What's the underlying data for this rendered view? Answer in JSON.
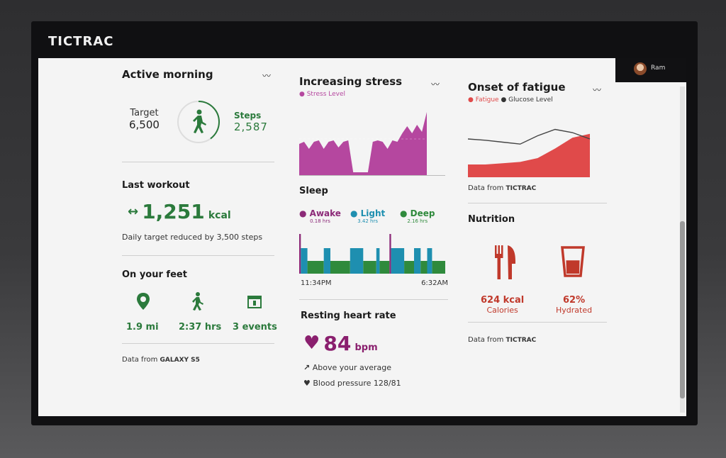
{
  "app": {
    "brand": "TICTRAC",
    "user_name": "Ram"
  },
  "active_morning": {
    "title": "Active morning",
    "target_label": "Target",
    "target_value": "6,500",
    "steps_label": "Steps",
    "steps_value": "2,587",
    "progress_fraction": 0.4
  },
  "last_workout": {
    "title": "Last workout",
    "value": "1,251",
    "unit": "kcal",
    "note": "Daily target reduced by 3,500 steps"
  },
  "on_your_feet": {
    "title": "On your feet",
    "items": [
      {
        "icon": "map-pin-icon",
        "value": "1.9 mi"
      },
      {
        "icon": "walker-icon",
        "value": "2:37 hrs"
      },
      {
        "icon": "calendar-icon",
        "value": "3 events"
      }
    ],
    "source_prefix": "Data from",
    "source": "GALAXY S5"
  },
  "increasing_stress": {
    "title": "Increasing stress",
    "legend": "Stress Level",
    "color": "#b5479f",
    "chart_data": {
      "type": "area",
      "series": [
        {
          "name": "Stress Level",
          "values": [
            45,
            48,
            38,
            48,
            50,
            38,
            48,
            50,
            40,
            48,
            50,
            5,
            5,
            5,
            5,
            48,
            50,
            48,
            38,
            50,
            48,
            60,
            70,
            60,
            72,
            62,
            90
          ]
        }
      ]
    }
  },
  "sleep": {
    "title": "Sleep",
    "legend": [
      {
        "label": "Awake",
        "hrs": "0.18 hrs",
        "color": "#8c2a78"
      },
      {
        "label": "Light",
        "hrs": "3.42 hrs",
        "color": "#1e8fb0"
      },
      {
        "label": "Deep",
        "hrs": "2.16 hrs",
        "color": "#2f8a3c"
      }
    ],
    "start_time": "11:34PM",
    "end_time": "6:32AM",
    "chart_data": {
      "type": "bar",
      "segments": [
        "awake",
        "light",
        "deep",
        "light",
        "deep",
        "light",
        "deep",
        "light",
        "deep",
        "awake",
        "light",
        "deep",
        "light",
        "deep",
        "light",
        "deep"
      ],
      "widths": [
        1,
        4,
        10,
        4,
        12,
        8,
        8,
        2,
        6,
        1,
        8,
        6,
        4,
        4,
        3,
        8
      ]
    }
  },
  "resting_heart_rate": {
    "title": "Resting heart rate",
    "value": "84",
    "unit": "bpm",
    "above": "Above your average",
    "pressure": "Blood pressure 128/81",
    "color": "#8a1f6e"
  },
  "onset_of_fatigue": {
    "title": "Onset of fatigue",
    "legend_fatigue": "Fatigue",
    "legend_glucose": "Glucose Level",
    "fatigue_color": "#e04a4a",
    "glucose_color": "#444444",
    "source_prefix": "Data from",
    "source": "TICTRAC",
    "chart_data": {
      "type": "area",
      "series": [
        {
          "name": "Fatigue",
          "values": [
            20,
            20,
            22,
            24,
            30,
            45,
            62,
            68
          ]
        },
        {
          "name": "Glucose Level",
          "values": [
            60,
            58,
            55,
            52,
            65,
            75,
            70,
            60
          ]
        }
      ]
    }
  },
  "nutrition": {
    "title": "Nutrition",
    "calories_value": "624 kcal",
    "calories_label": "Calories",
    "hydrated_value": "62%",
    "hydrated_label": "Hydrated",
    "hydrated_fraction": 0.62,
    "color": "#c0392b",
    "source_prefix": "Data from",
    "source": "TICTRAC"
  }
}
